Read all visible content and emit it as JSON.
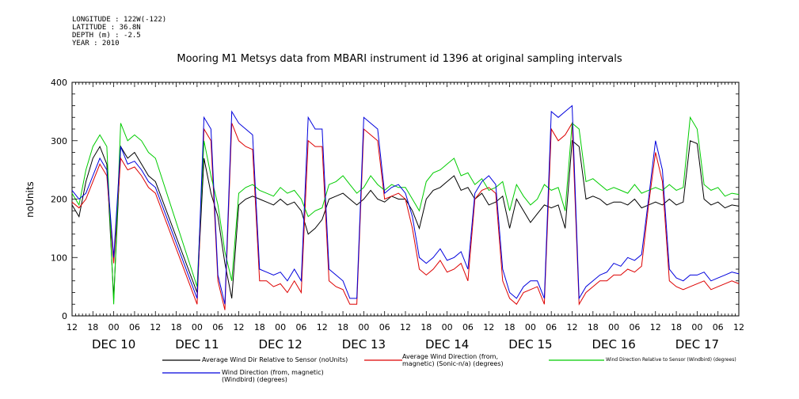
{
  "header": {
    "lines": [
      "LONGITUDE : 122W(-122)",
      "LATITUDE : 36.8N",
      "DEPTH (m) : -2.5",
      "YEAR : 2010"
    ]
  },
  "chart_data": {
    "type": "line",
    "title": "Mooring M1 Metsys data from MBARI instrument id 1396 at original sampling intervals",
    "ylabel": "noUnits",
    "xlabel": "",
    "ylim": [
      0,
      400
    ],
    "y_ticks": [
      "0",
      "100",
      "200",
      "300",
      "400"
    ],
    "x_hour_labels": [
      "12",
      "18",
      "00",
      "06",
      "12",
      "18",
      "00",
      "06",
      "12",
      "18",
      "00",
      "06",
      "12",
      "18",
      "00",
      "06",
      "12",
      "18",
      "00",
      "06",
      "12",
      "18",
      "00",
      "06",
      "12",
      "18",
      "00",
      "06",
      "12",
      "18",
      "00",
      "06",
      "12"
    ],
    "x_day_labels": [
      "DEC 10",
      "DEC 11",
      "DEC 12",
      "DEC 13",
      "DEC 14",
      "DEC 15",
      "DEC 16",
      "DEC 17"
    ],
    "x_range_hours": [
      0,
      192
    ],
    "grid": false,
    "legend_placement": "bottom",
    "series": [
      {
        "name": "Average Wind Dir Relative to Sensor (noUnits)",
        "color": "#000000",
        "x": [
          0,
          2,
          4,
          6,
          8,
          10,
          12,
          14,
          16,
          18,
          20,
          21,
          22,
          24,
          36,
          38,
          40,
          42,
          44,
          46,
          48,
          50,
          52,
          54,
          56,
          58,
          60,
          62,
          64,
          66,
          68,
          70,
          72,
          74,
          76,
          78,
          80,
          82,
          84,
          86,
          88,
          90,
          92,
          94,
          96,
          98,
          100,
          102,
          104,
          106,
          108,
          110,
          112,
          114,
          116,
          118,
          120,
          122,
          124,
          126,
          128,
          130,
          132,
          134,
          136,
          138,
          140,
          142,
          144,
          146,
          148,
          150,
          152,
          154,
          156,
          158,
          160,
          162,
          164,
          166,
          168,
          170,
          172,
          174,
          176,
          178,
          180,
          182,
          184,
          186,
          188,
          190,
          192
        ],
        "y": [
          190,
          170,
          230,
          270,
          290,
          260,
          30,
          290,
          270,
          280,
          260,
          250,
          240,
          230,
          40,
          270,
          210,
          170,
          90,
          30,
          190,
          200,
          205,
          200,
          195,
          190,
          200,
          190,
          195,
          180,
          140,
          150,
          165,
          200,
          205,
          210,
          200,
          190,
          200,
          215,
          200,
          195,
          205,
          200,
          200,
          180,
          150,
          200,
          215,
          220,
          230,
          240,
          215,
          220,
          200,
          210,
          190,
          195,
          205,
          150,
          200,
          180,
          160,
          175,
          190,
          185,
          190,
          150,
          300,
          290,
          200,
          205,
          200,
          190,
          195,
          195,
          190,
          200,
          185,
          190,
          195,
          190,
          200,
          190,
          195,
          300,
          295,
          200,
          190,
          195,
          185,
          190,
          188
        ]
      },
      {
        "name": "Average Wind Direction (from, magnetic) (Sonic-n/a) (degrees)",
        "color": "#dd0000",
        "x": [
          0,
          2,
          4,
          6,
          8,
          10,
          12,
          14,
          16,
          18,
          20,
          21,
          22,
          24,
          36,
          38,
          40,
          42,
          44,
          46,
          48,
          50,
          52,
          54,
          56,
          58,
          60,
          62,
          64,
          66,
          68,
          70,
          72,
          74,
          76,
          78,
          80,
          82,
          84,
          86,
          88,
          90,
          92,
          94,
          96,
          98,
          100,
          102,
          104,
          106,
          108,
          110,
          112,
          114,
          116,
          118,
          120,
          122,
          124,
          126,
          128,
          130,
          132,
          134,
          136,
          138,
          140,
          142,
          144,
          146,
          148,
          150,
          152,
          154,
          156,
          158,
          160,
          162,
          164,
          166,
          168,
          170,
          172,
          174,
          176,
          178,
          180,
          182,
          184,
          186,
          188,
          190,
          192
        ],
        "y": [
          195,
          185,
          200,
          230,
          260,
          240,
          90,
          270,
          250,
          255,
          240,
          230,
          220,
          210,
          20,
          320,
          300,
          60,
          10,
          330,
          300,
          290,
          285,
          60,
          60,
          50,
          55,
          40,
          60,
          40,
          300,
          290,
          290,
          60,
          50,
          45,
          20,
          20,
          320,
          310,
          300,
          200,
          205,
          210,
          200,
          150,
          80,
          70,
          80,
          95,
          75,
          80,
          90,
          60,
          200,
          215,
          220,
          210,
          60,
          30,
          20,
          40,
          45,
          50,
          20,
          320,
          300,
          310,
          330,
          20,
          40,
          50,
          60,
          60,
          70,
          70,
          80,
          75,
          85,
          190,
          280,
          230,
          60,
          50,
          45,
          50,
          55,
          60,
          45,
          50,
          55,
          60,
          55
        ]
      },
      {
        "name": "Wind Direction Relative to Sensor (Windbird) (degrees)",
        "color": "#00cc00",
        "x": [
          0,
          2,
          4,
          6,
          8,
          10,
          12,
          14,
          16,
          18,
          20,
          21,
          22,
          24,
          36,
          38,
          40,
          42,
          44,
          46,
          48,
          50,
          52,
          54,
          56,
          58,
          60,
          62,
          64,
          66,
          68,
          70,
          72,
          74,
          76,
          78,
          80,
          82,
          84,
          86,
          88,
          90,
          92,
          94,
          96,
          98,
          100,
          102,
          104,
          106,
          108,
          110,
          112,
          114,
          116,
          118,
          120,
          122,
          124,
          126,
          128,
          130,
          132,
          134,
          136,
          138,
          140,
          142,
          144,
          146,
          148,
          150,
          152,
          154,
          156,
          158,
          160,
          162,
          164,
          166,
          168,
          170,
          172,
          174,
          176,
          178,
          180,
          182,
          184,
          186,
          188,
          190,
          192
        ],
        "y": [
          210,
          190,
          250,
          290,
          310,
          290,
          20,
          330,
          300,
          310,
          300,
          290,
          280,
          270,
          50,
          300,
          240,
          190,
          110,
          60,
          210,
          220,
          225,
          215,
          210,
          205,
          220,
          210,
          215,
          200,
          170,
          180,
          185,
          225,
          230,
          240,
          225,
          210,
          220,
          240,
          225,
          215,
          225,
          220,
          220,
          200,
          180,
          230,
          245,
          250,
          260,
          270,
          240,
          245,
          225,
          235,
          215,
          220,
          230,
          180,
          225,
          205,
          190,
          200,
          225,
          215,
          220,
          180,
          330,
          320,
          230,
          235,
          225,
          215,
          220,
          215,
          210,
          225,
          210,
          215,
          220,
          215,
          225,
          215,
          220,
          340,
          320,
          225,
          215,
          220,
          205,
          210,
          208
        ]
      },
      {
        "name": "Wind Direction (from, magnetic) (Windbird) (degrees)",
        "color": "#0000dd",
        "x": [
          0,
          2,
          4,
          6,
          8,
          10,
          12,
          14,
          16,
          18,
          20,
          21,
          22,
          24,
          36,
          38,
          40,
          42,
          44,
          46,
          48,
          50,
          52,
          54,
          56,
          58,
          60,
          62,
          64,
          66,
          68,
          70,
          72,
          74,
          76,
          78,
          80,
          82,
          84,
          86,
          88,
          90,
          92,
          94,
          96,
          98,
          100,
          102,
          104,
          106,
          108,
          110,
          112,
          114,
          116,
          118,
          120,
          122,
          124,
          126,
          128,
          130,
          132,
          134,
          136,
          138,
          140,
          142,
          144,
          146,
          148,
          150,
          152,
          154,
          156,
          158,
          160,
          162,
          164,
          166,
          168,
          170,
          172,
          174,
          176,
          178,
          180,
          182,
          184,
          186,
          188,
          190,
          192
        ],
        "y": [
          215,
          200,
          210,
          240,
          270,
          250,
          100,
          290,
          260,
          265,
          250,
          240,
          230,
          220,
          30,
          340,
          320,
          70,
          20,
          350,
          330,
          320,
          310,
          80,
          75,
          70,
          75,
          60,
          80,
          60,
          340,
          320,
          320,
          80,
          70,
          60,
          30,
          30,
          340,
          330,
          320,
          210,
          220,
          225,
          210,
          170,
          100,
          90,
          100,
          115,
          95,
          100,
          110,
          80,
          210,
          230,
          240,
          225,
          80,
          40,
          30,
          50,
          60,
          60,
          30,
          350,
          340,
          350,
          360,
          30,
          50,
          60,
          70,
          75,
          90,
          85,
          100,
          95,
          105,
          200,
          300,
          250,
          80,
          65,
          60,
          70,
          70,
          75,
          60,
          65,
          70,
          75,
          72
        ]
      }
    ]
  }
}
